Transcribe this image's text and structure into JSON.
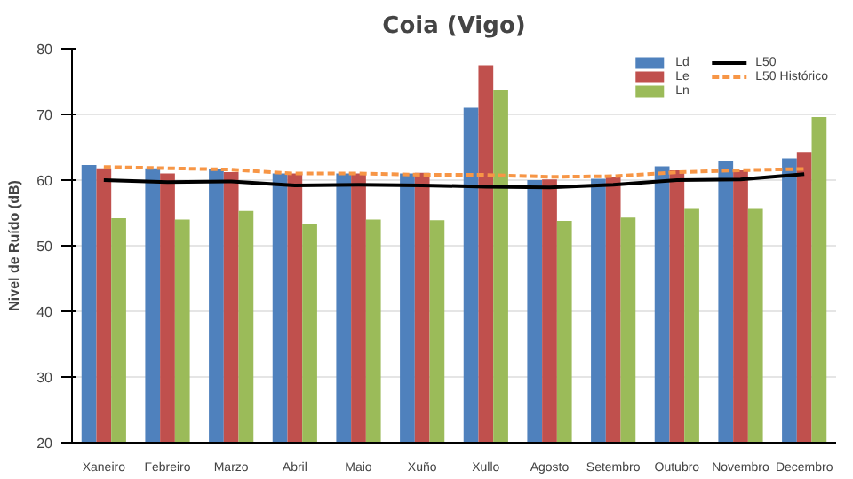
{
  "chart_data": {
    "type": "bar",
    "title": "Coia (Vigo)",
    "ylabel": "Nivel de Ruído (dB)",
    "categories": [
      "Xaneiro",
      "Febreiro",
      "Marzo",
      "Abril",
      "Maio",
      "Xuño",
      "Xullo",
      "Agosto",
      "Setembro",
      "Outubro",
      "Novembro",
      "Decembro"
    ],
    "series": [
      {
        "name": "Ld",
        "color": "#4f81bd",
        "values": [
          62.3,
          61.8,
          61.7,
          61.0,
          61.0,
          61.0,
          71.0,
          60.0,
          60.2,
          62.1,
          62.9,
          63.3
        ]
      },
      {
        "name": "Le",
        "color": "#c0504d",
        "values": [
          61.8,
          61.0,
          61.2,
          61.0,
          61.0,
          61.1,
          77.5,
          60.1,
          60.5,
          61.5,
          61.5,
          64.3
        ]
      },
      {
        "name": "Ln",
        "color": "#9bbb59",
        "values": [
          54.2,
          54.0,
          55.3,
          53.3,
          54.0,
          53.9,
          73.8,
          53.8,
          54.3,
          55.6,
          55.6,
          69.6
        ]
      },
      {
        "name": "L50",
        "type": "line",
        "color": "#000000",
        "line_style": "solid",
        "values": [
          60.0,
          59.7,
          59.8,
          59.2,
          59.3,
          59.2,
          59.0,
          58.9,
          59.3,
          60.0,
          60.1,
          60.9
        ]
      },
      {
        "name": "L50 Histórico",
        "type": "line",
        "color": "#f79646",
        "line_style": "dashed",
        "values": [
          62.0,
          61.8,
          61.6,
          61.0,
          61.0,
          60.8,
          60.8,
          60.5,
          60.6,
          61.2,
          61.5,
          61.7
        ]
      }
    ],
    "ylim": [
      20,
      80
    ],
    "yticks": [
      20,
      30,
      40,
      50,
      60,
      70,
      80
    ],
    "grid": "y",
    "legend": "top right"
  }
}
